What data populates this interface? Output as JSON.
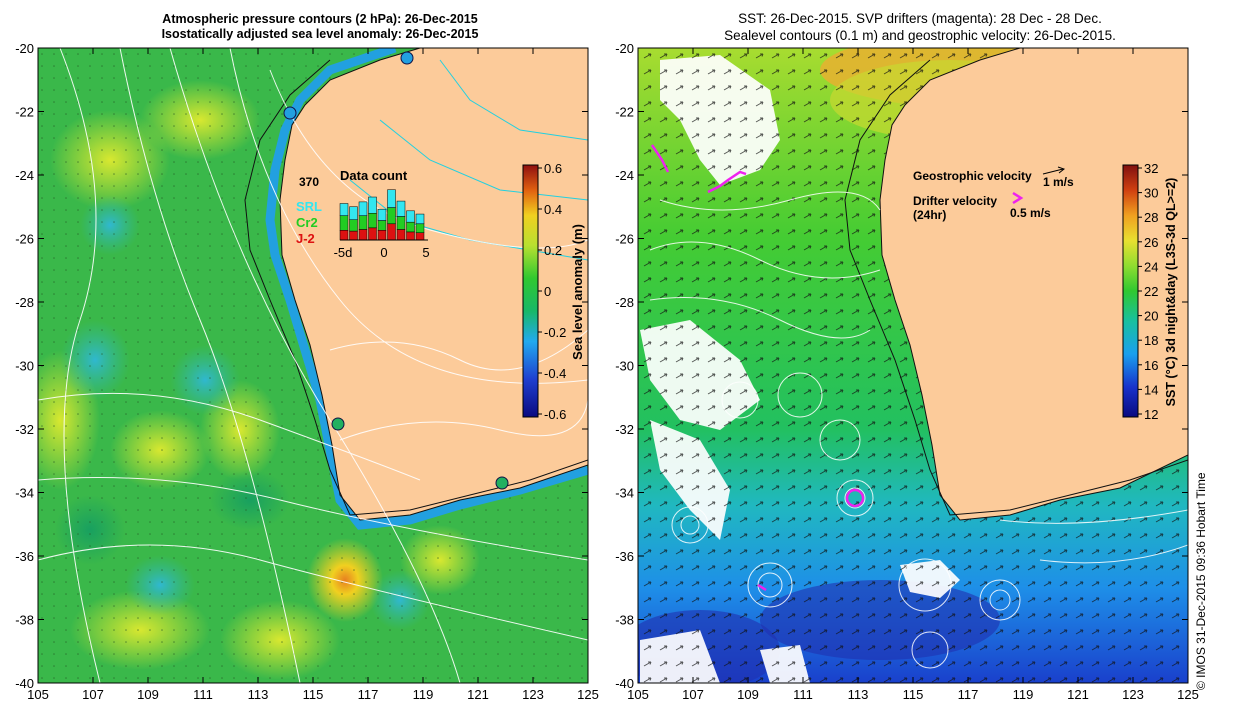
{
  "left_panel": {
    "title_line1": "Atmospheric pressure contours (2 hPa): 26-Dec-2015",
    "title_line2": "Isostatically adjusted sea level anomaly: 26-Dec-2015",
    "x_ticks": [
      "105",
      "107",
      "109",
      "111",
      "113",
      "115",
      "117",
      "119",
      "121",
      "123",
      "125"
    ],
    "y_ticks": [
      "-20",
      "-22",
      "-24",
      "-26",
      "-28",
      "-30",
      "-32",
      "-34",
      "-36",
      "-38",
      "-40"
    ],
    "colorbar": {
      "label": "Sea level anomaly (m)",
      "ticks": [
        "0.6",
        "0.4",
        "0.2",
        "0",
        "-0.2",
        "-0.4",
        "-0.6"
      ],
      "range": [
        -0.6,
        0.6
      ]
    },
    "data_count": {
      "title": "Data count",
      "max_label": "370",
      "legend": [
        {
          "name": "SRL",
          "color": "#33e6f0"
        },
        {
          "name": "Cr2",
          "color": "#22cc22"
        },
        {
          "name": "J-2",
          "color": "#dd1111"
        }
      ],
      "x_labels": [
        "-5d",
        "0",
        "5"
      ],
      "bars": [
        {
          "SRL": 75,
          "Cr2": 90,
          "J-2": 60
        },
        {
          "SRL": 80,
          "Cr2": 70,
          "J-2": 55
        },
        {
          "SRL": 85,
          "Cr2": 85,
          "J-2": 65
        },
        {
          "SRL": 100,
          "Cr2": 90,
          "J-2": 75
        },
        {
          "SRL": 70,
          "Cr2": 60,
          "J-2": 60
        },
        {
          "SRL": 110,
          "Cr2": 100,
          "J-2": 100
        },
        {
          "SRL": 95,
          "Cr2": 80,
          "J-2": 65
        },
        {
          "SRL": 70,
          "Cr2": 60,
          "J-2": 50
        },
        {
          "SRL": 60,
          "Cr2": 55,
          "J-2": 45
        }
      ]
    }
  },
  "right_panel": {
    "title_line1": "SST: 26-Dec-2015. SVP drifters (magenta): 28 Dec - 28 Dec.",
    "title_line2": "Sealevel contours (0.1 m) and geostrophic velocity: 26-Dec-2015.",
    "x_ticks": [
      "105",
      "107",
      "109",
      "111",
      "113",
      "115",
      "117",
      "119",
      "121",
      "123",
      "125"
    ],
    "y_ticks": [
      "-20",
      "-22",
      "-24",
      "-26",
      "-28",
      "-30",
      "-32",
      "-34",
      "-36",
      "-38",
      "-40"
    ],
    "colorbar": {
      "label": "SST (°C) 3d night&day (L3S-3d QL>=2)",
      "ticks": [
        "32",
        "30",
        "28",
        "26",
        "24",
        "22",
        "20",
        "18",
        "16",
        "14",
        "12"
      ],
      "range": [
        12,
        32
      ]
    },
    "legend": {
      "geo_label": "Geostrophic velocity",
      "geo_unit": "1 m/s",
      "drifter_label": "Drifter velocity",
      "drifter_period": "(24hr)",
      "drifter_unit": "0.5 m/s"
    }
  },
  "credit": "© IMOS 31-Dec-2015 09:36 Hobart Time"
}
